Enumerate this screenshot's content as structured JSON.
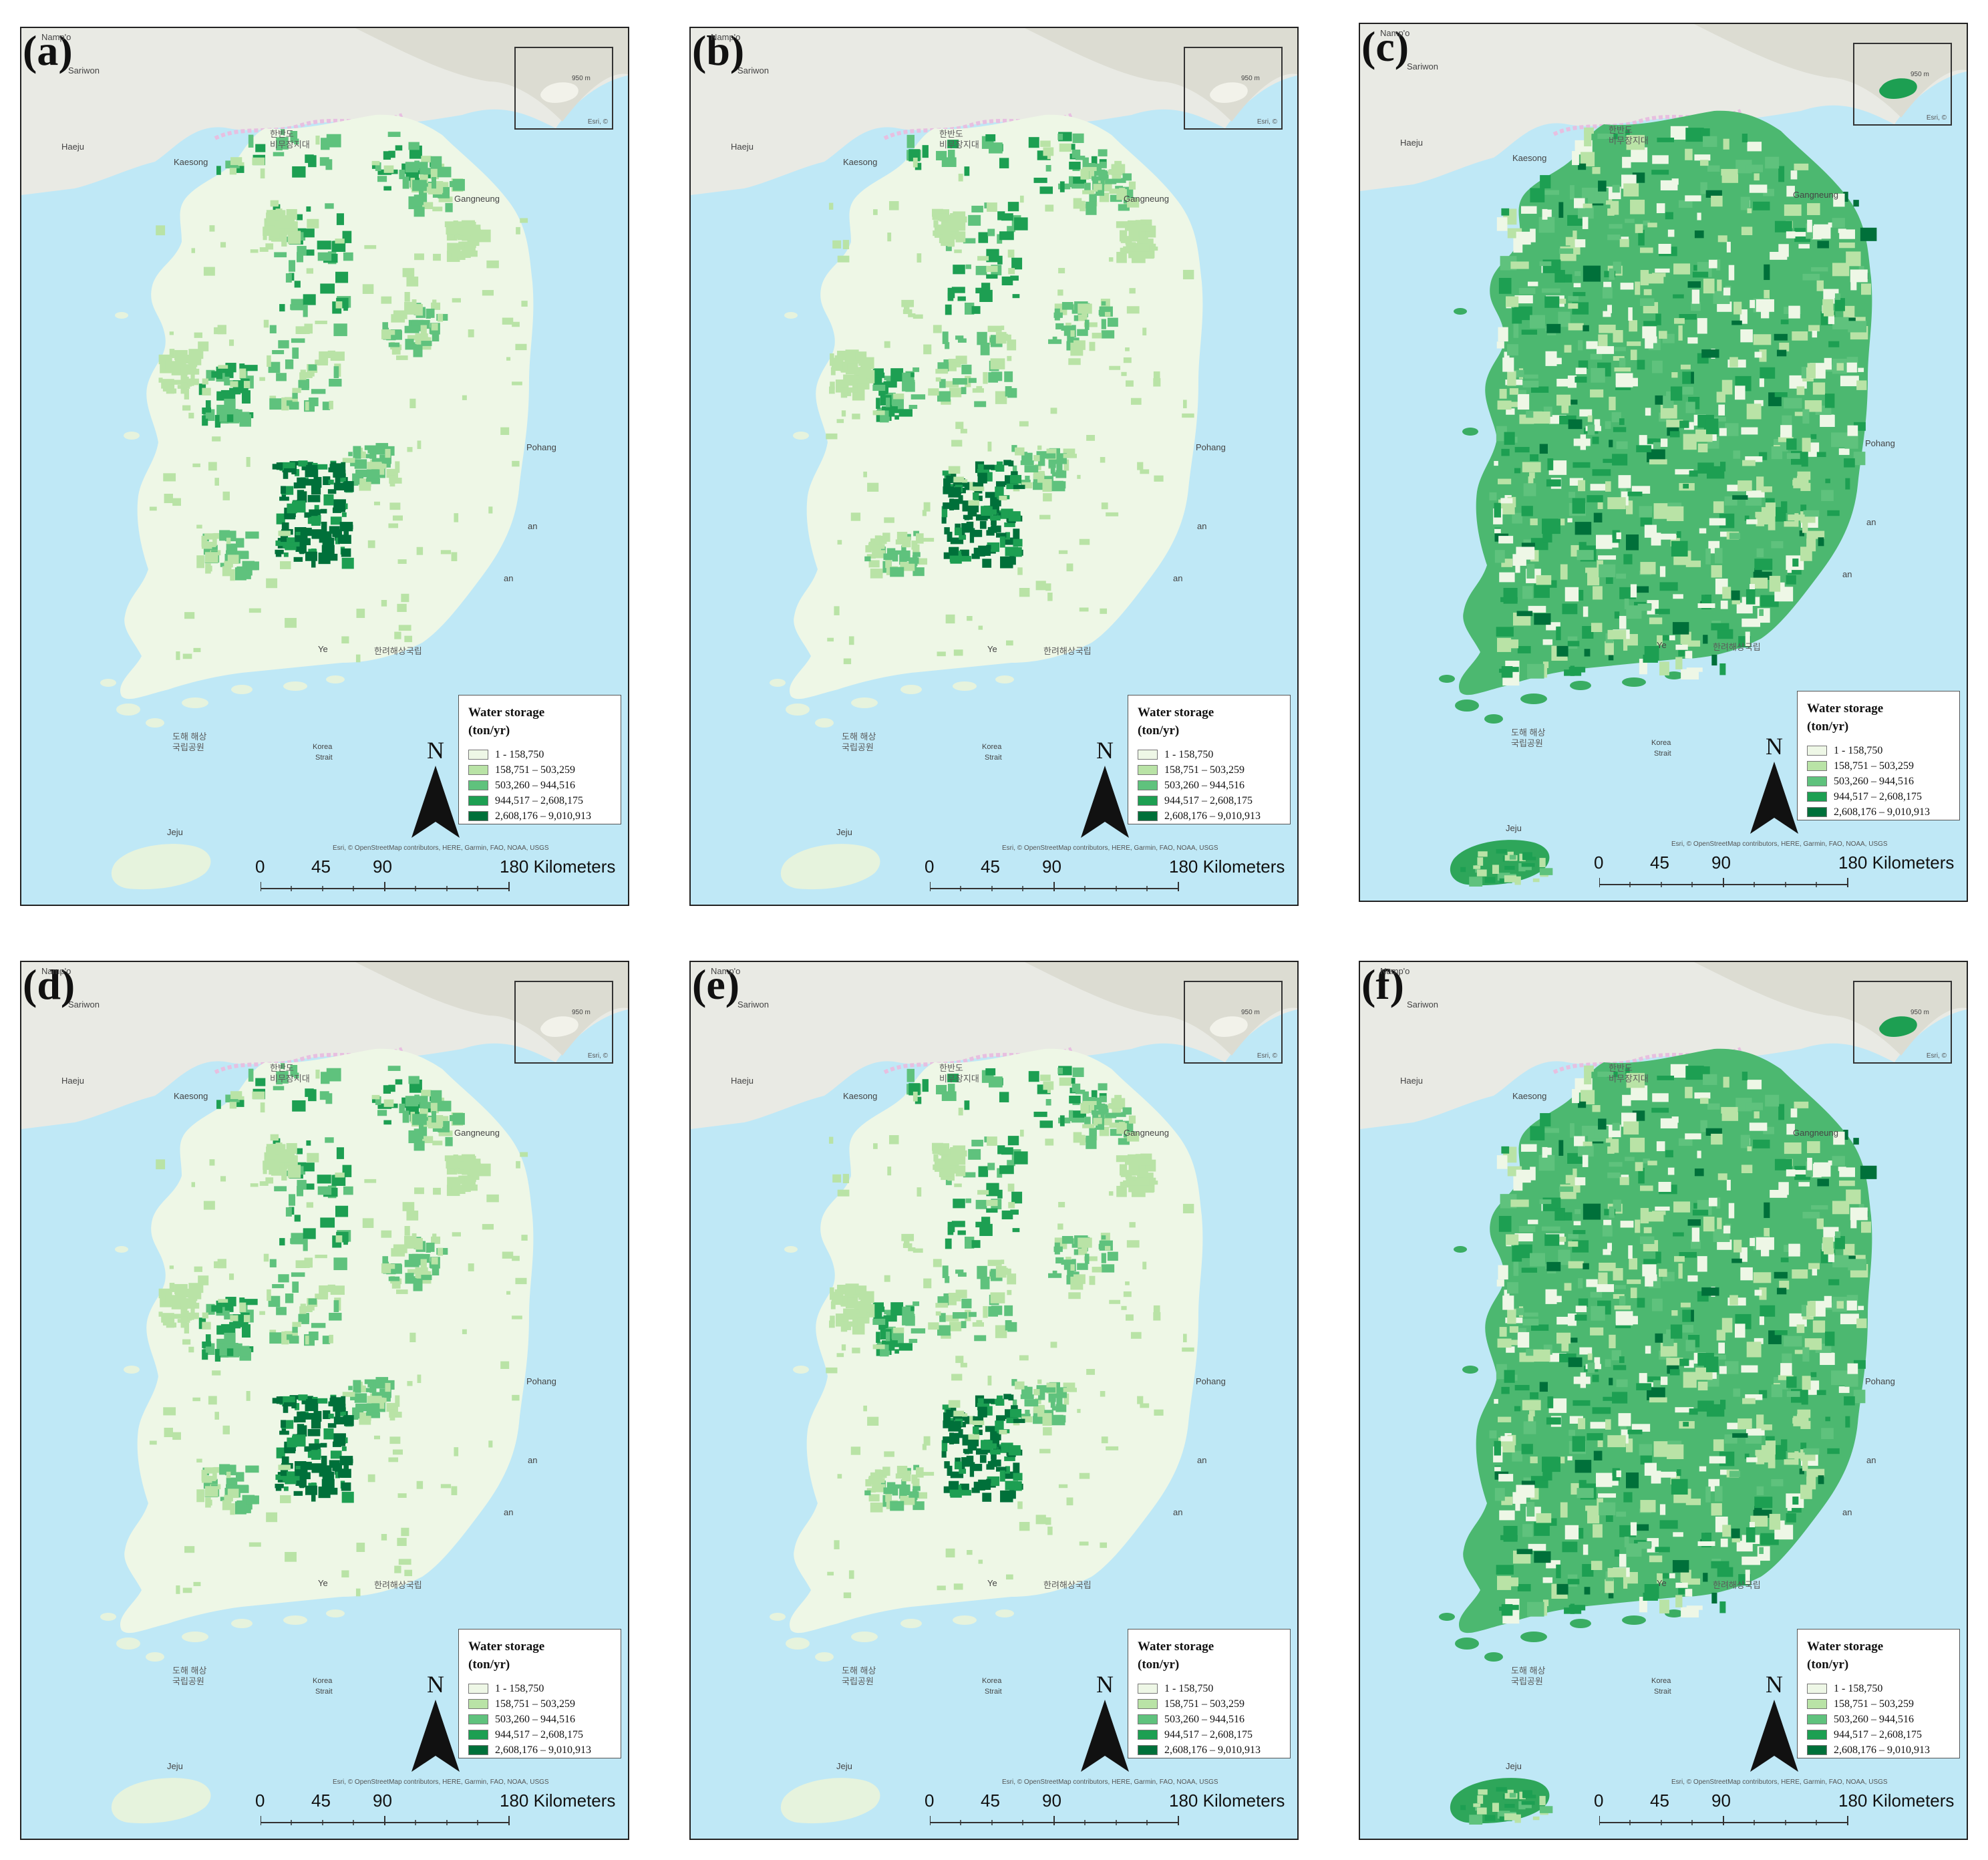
{
  "map_defs": {
    "legend_title_line1": "Water storage",
    "legend_title_line2": "(ton/yr)",
    "classes": [
      {
        "range": "1 - 158,750",
        "color": "#eef7e6"
      },
      {
        "range": "158,751 – 503,259",
        "color": "#b9e3a6"
      },
      {
        "range": "503,260 – 944,516",
        "color": "#5fc27d"
      },
      {
        "range": "944,517 – 2,608,175",
        "color": "#1d9f52"
      },
      {
        "range": "2,608,176 – 9,010,913",
        "color": "#00703a"
      }
    ],
    "north_label": "N",
    "scale_ticks": [
      "0",
      "45",
      "90",
      "180 Kilometers"
    ],
    "attribution": "Esri, © OpenStreetMap contributors, HERE, Garmin, FAO, NOAA, USGS",
    "inset_caption": "Esri, ©",
    "inset_elevation": "950 m",
    "places": {
      "nampo": "Namp'o",
      "sariwon": "Sariwon",
      "haeju": "Haeju",
      "kaesong": "Kaesong",
      "gangneung": "Gangneung",
      "pohang": "Pohang",
      "busan": "an",
      "ulsan": "an",
      "yeosu": "Ye",
      "jeju": "Jeju",
      "korea_strait_1": "Korea",
      "korea_strait_2": "Strait",
      "dmz_1": "한반도",
      "dmz_2": "비무장지대",
      "sea_label": "한려해상국립",
      "jeju_sea_1": "도해 해상",
      "jeju_sea_2": "국립공원"
    },
    "colors": {
      "sea": "#bfe8f6",
      "north_land": "#e9eae4",
      "outline": "#cfe3c8"
    }
  },
  "panels": [
    {
      "label": "(a)",
      "style": "sparse",
      "jeju_style": "light"
    },
    {
      "label": "(b)",
      "style": "sparse2",
      "jeju_style": "light"
    },
    {
      "label": "(c)",
      "style": "dense",
      "jeju_style": "dark"
    },
    {
      "label": "(d)",
      "style": "sparse",
      "jeju_style": "light"
    },
    {
      "label": "(e)",
      "style": "sparse2",
      "jeju_style": "light"
    },
    {
      "label": "(f)",
      "style": "dense",
      "jeju_style": "dark"
    }
  ]
}
